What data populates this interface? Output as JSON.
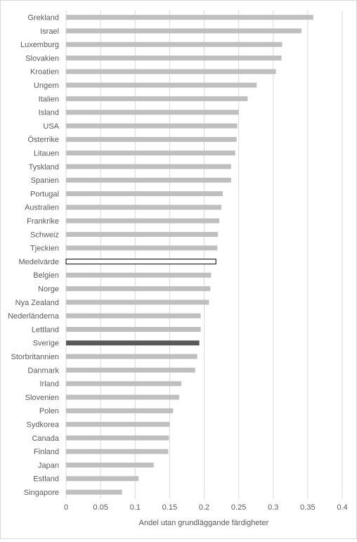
{
  "chart_data": {
    "type": "bar",
    "orientation": "horizontal",
    "title": "",
    "xlabel": "Andel utan grundläggande färdigheter",
    "ylabel": "",
    "xlim": [
      0,
      0.4
    ],
    "xticks": [
      "0",
      "0.05",
      "0.1",
      "0.15",
      "0.2",
      "0.25",
      "0.3",
      "0.35",
      "0.4"
    ],
    "grid": "vertical",
    "legend": "none",
    "categories": [
      "Grekland",
      "Israel",
      "Luxemburg",
      "Slovakien",
      "Kroatien",
      "Ungern",
      "Italien",
      "Island",
      "USA",
      "Österrike",
      "Litauen",
      "Tyskland",
      "Spanien",
      "Portugal",
      "Australien",
      "Frankrike",
      "Schweiz",
      "Tjeckien",
      "Medelvärde",
      "Belgien",
      "Norge",
      "Nya Zealand",
      "Nederländerna",
      "Lettland",
      "Sverige",
      "Storbritannien",
      "Danmark",
      "Irland",
      "Slovenien",
      "Polen",
      "Sydkorea",
      "Canada",
      "Finland",
      "Japan",
      "Estland",
      "Singapore"
    ],
    "values": [
      0.358,
      0.341,
      0.313,
      0.312,
      0.304,
      0.276,
      0.263,
      0.25,
      0.248,
      0.247,
      0.245,
      0.239,
      0.239,
      0.227,
      0.225,
      0.222,
      0.22,
      0.219,
      0.217,
      0.21,
      0.209,
      0.207,
      0.195,
      0.195,
      0.193,
      0.19,
      0.187,
      0.167,
      0.164,
      0.155,
      0.15,
      0.149,
      0.148,
      0.127,
      0.105,
      0.081
    ],
    "colors": {
      "default": "#bfbfbf",
      "highlight": "#595959",
      "average_fill": "#ffffff",
      "average_stroke": "#000000",
      "grid": "#d9d9d9",
      "text": "#595959"
    },
    "highlight_category": "Sverige",
    "average_category": "Medelvärde"
  }
}
